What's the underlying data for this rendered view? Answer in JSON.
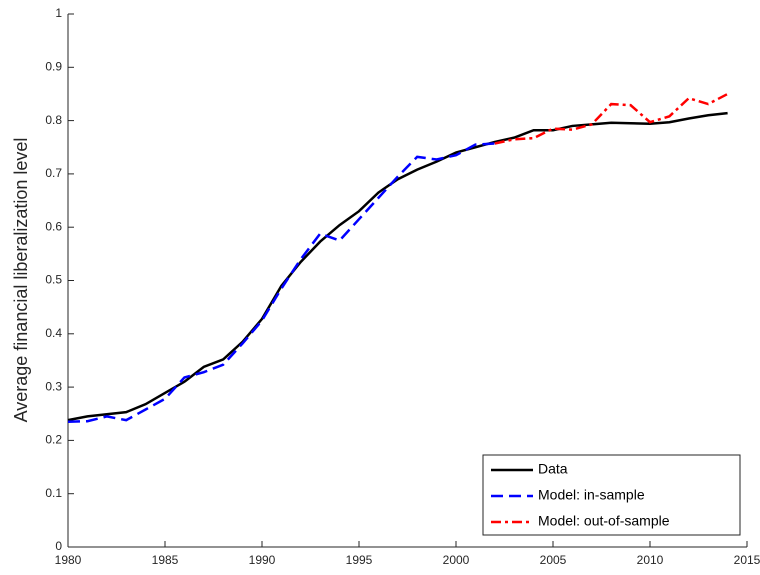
{
  "chart_data": {
    "type": "line",
    "ylabel": "Average financial liberalization level",
    "x": [
      1980,
      1981,
      1982,
      1983,
      1984,
      1985,
      1986,
      1987,
      1988,
      1989,
      1990,
      1991,
      1992,
      1993,
      1994,
      1995,
      1996,
      1997,
      1998,
      1999,
      2000,
      2001,
      2002,
      2003,
      2004,
      2005,
      2006,
      2007,
      2008,
      2009,
      2010,
      2011,
      2012,
      2013,
      2014
    ],
    "series": [
      {
        "name": "Data",
        "color": "#000000",
        "style": "solid",
        "values": [
          0.238,
          0.245,
          0.249,
          0.253,
          0.268,
          0.289,
          0.31,
          0.338,
          0.352,
          0.385,
          0.428,
          0.49,
          0.535,
          0.573,
          0.604,
          0.63,
          0.665,
          0.69,
          0.708,
          0.723,
          0.74,
          0.75,
          0.76,
          0.768,
          0.782,
          0.782,
          0.79,
          0.793,
          0.796,
          0.795,
          0.794,
          0.797,
          0.804,
          0.81,
          0.814
        ]
      },
      {
        "name": "Model: in-sample",
        "color": "#0000ff",
        "style": "dashed",
        "values": [
          0.235,
          0.236,
          0.245,
          0.238,
          0.258,
          0.278,
          0.318,
          0.328,
          0.342,
          0.382,
          0.425,
          0.485,
          0.54,
          0.588,
          0.575,
          0.615,
          0.655,
          0.695,
          0.732,
          0.727,
          0.735,
          0.755,
          0.757,
          null,
          null,
          null,
          null,
          null,
          null,
          null,
          null,
          null,
          null,
          null,
          null
        ]
      },
      {
        "name": "Model: out-of-sample",
        "color": "#ff0000",
        "style": "dashdot",
        "values": [
          null,
          null,
          null,
          null,
          null,
          null,
          null,
          null,
          null,
          null,
          null,
          null,
          null,
          null,
          null,
          null,
          null,
          null,
          null,
          null,
          null,
          null,
          0.757,
          0.765,
          0.767,
          0.785,
          0.783,
          0.793,
          0.831,
          0.829,
          0.797,
          0.808,
          0.842,
          0.831,
          0.85
        ]
      }
    ],
    "xlim": [
      1980,
      2015
    ],
    "xticks": [
      1980,
      1985,
      1990,
      1995,
      2000,
      2005,
      2010,
      2015
    ],
    "ylim": [
      0,
      1
    ],
    "yticks": [
      0,
      0.1,
      0.2,
      0.3,
      0.4,
      0.5,
      0.6,
      0.7,
      0.8,
      0.9,
      1
    ],
    "grid": false,
    "legend": "lower-right"
  }
}
